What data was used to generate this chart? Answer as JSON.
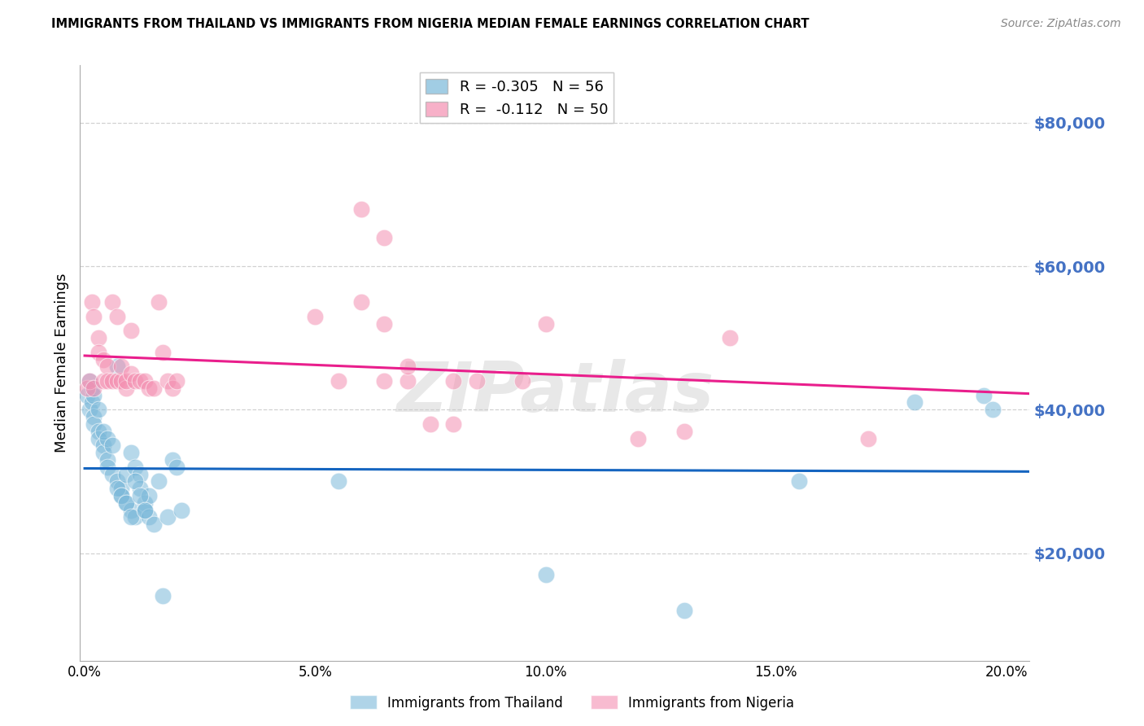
{
  "title": "IMMIGRANTS FROM THAILAND VS IMMIGRANTS FROM NIGERIA MEDIAN FEMALE EARNINGS CORRELATION CHART",
  "source": "Source: ZipAtlas.com",
  "ylabel": "Median Female Earnings",
  "ytick_labels": [
    "$20,000",
    "$40,000",
    "$60,000",
    "$80,000"
  ],
  "ytick_vals": [
    20000,
    40000,
    60000,
    80000
  ],
  "ylim": [
    5000,
    88000
  ],
  "xlim": [
    -0.001,
    0.205
  ],
  "xtick_vals": [
    0.0,
    0.05,
    0.1,
    0.15,
    0.2
  ],
  "xtick_labels": [
    "0.0%",
    "5.0%",
    "10.0%",
    "15.0%",
    "20.0%"
  ],
  "thailand_R": -0.305,
  "thailand_N": 56,
  "nigeria_R": -0.112,
  "nigeria_N": 50,
  "thailand_color": "#7ab8d9",
  "nigeria_color": "#f48fb1",
  "trend_blue": "#1565c0",
  "trend_pink": "#e91e8c",
  "legend_label_thailand": "Immigrants from Thailand",
  "legend_label_nigeria": "Immigrants from Nigeria",
  "watermark": "ZIPatlas",
  "background_color": "#ffffff",
  "grid_color": "#cccccc",
  "axis_label_color": "#4472c4",
  "thailand_x": [
    0.0005,
    0.001,
    0.001,
    0.0015,
    0.0015,
    0.002,
    0.002,
    0.002,
    0.003,
    0.003,
    0.003,
    0.004,
    0.004,
    0.004,
    0.005,
    0.005,
    0.005,
    0.006,
    0.006,
    0.007,
    0.007,
    0.008,
    0.008,
    0.009,
    0.009,
    0.01,
    0.01,
    0.011,
    0.011,
    0.012,
    0.012,
    0.013,
    0.013,
    0.014,
    0.014,
    0.015,
    0.016,
    0.017,
    0.018,
    0.019,
    0.02,
    0.021,
    0.007,
    0.008,
    0.009,
    0.01,
    0.011,
    0.012,
    0.013,
    0.055,
    0.1,
    0.13,
    0.155,
    0.18,
    0.195,
    0.197
  ],
  "thailand_y": [
    42000,
    44000,
    40000,
    43000,
    41000,
    39000,
    38000,
    42000,
    37000,
    40000,
    36000,
    35000,
    37000,
    34000,
    33000,
    36000,
    32000,
    31000,
    35000,
    30000,
    46000,
    29000,
    28000,
    31000,
    27000,
    26000,
    34000,
    25000,
    32000,
    31000,
    29000,
    27000,
    26000,
    25000,
    28000,
    24000,
    30000,
    14000,
    25000,
    33000,
    32000,
    26000,
    29000,
    28000,
    27000,
    25000,
    30000,
    28000,
    26000,
    30000,
    17000,
    12000,
    30000,
    41000,
    42000,
    40000
  ],
  "nigeria_x": [
    0.0005,
    0.001,
    0.0015,
    0.002,
    0.002,
    0.003,
    0.003,
    0.004,
    0.004,
    0.005,
    0.005,
    0.006,
    0.006,
    0.007,
    0.007,
    0.008,
    0.008,
    0.009,
    0.009,
    0.01,
    0.01,
    0.011,
    0.012,
    0.013,
    0.014,
    0.015,
    0.016,
    0.017,
    0.018,
    0.019,
    0.02,
    0.05,
    0.055,
    0.06,
    0.065,
    0.07,
    0.08,
    0.085,
    0.095,
    0.1,
    0.12,
    0.13,
    0.14,
    0.06,
    0.065,
    0.065,
    0.07,
    0.075,
    0.08,
    0.17
  ],
  "nigeria_y": [
    43000,
    44000,
    55000,
    43000,
    53000,
    50000,
    48000,
    47000,
    44000,
    46000,
    44000,
    55000,
    44000,
    53000,
    44000,
    44000,
    46000,
    43000,
    44000,
    45000,
    51000,
    44000,
    44000,
    44000,
    43000,
    43000,
    55000,
    48000,
    44000,
    43000,
    44000,
    53000,
    44000,
    55000,
    44000,
    44000,
    44000,
    44000,
    44000,
    52000,
    36000,
    37000,
    50000,
    68000,
    64000,
    52000,
    46000,
    38000,
    38000,
    36000
  ]
}
